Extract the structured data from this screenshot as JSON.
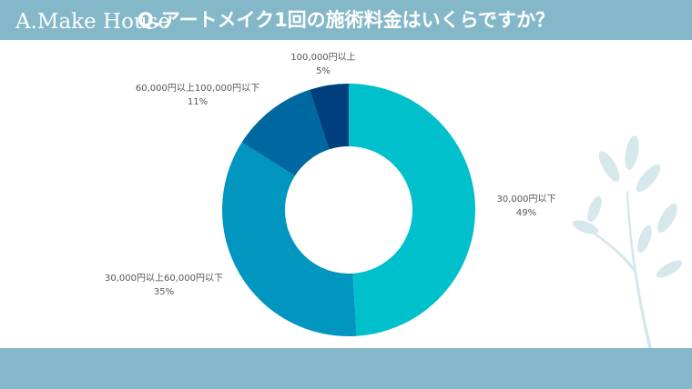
{
  "header": {
    "title": "Q.アートメイク1回の施術料金はいくらですか？"
  },
  "footer": {
    "brand": "A.Make House"
  },
  "colors": {
    "banner": "#84b8c8",
    "slice_1": "#00c0cc",
    "slice_2": "#0096c0",
    "slice_3": "#0068a0",
    "slice_4": "#003f7e",
    "plant": "#d6e8ec"
  },
  "chart_data": {
    "type": "pie",
    "style": "donut",
    "title": "Q.アートメイク1回の施術料金はいくらですか？",
    "slices": [
      {
        "label": "30,000円以下",
        "value": 49,
        "value_label": "49%",
        "color": "#00c0cc"
      },
      {
        "label": "30,000円以上60,000円以下",
        "value": 35,
        "value_label": "35%",
        "color": "#0096c0"
      },
      {
        "label": "60,000円以上100,000円以下",
        "value": 11,
        "value_label": "11%",
        "color": "#0068a0"
      },
      {
        "label": "100,000円以上",
        "value": 5,
        "value_label": "5%",
        "color": "#003f7e"
      }
    ]
  }
}
